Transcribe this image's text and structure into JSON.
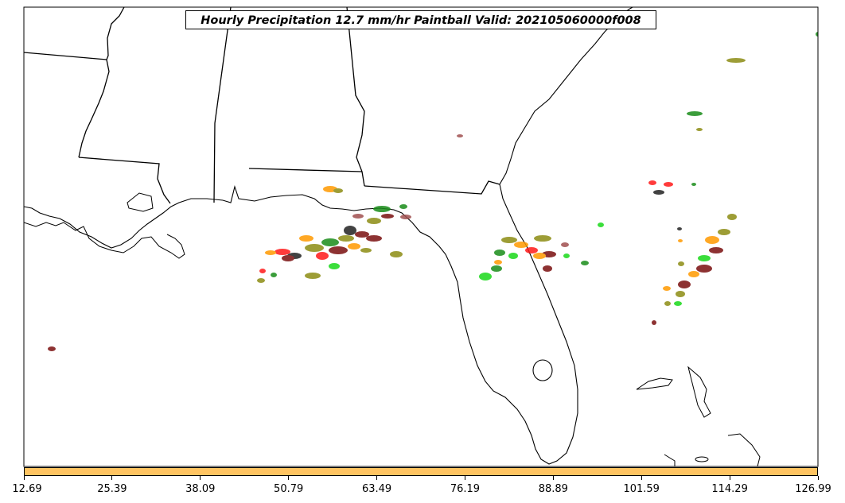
{
  "title": "Hourly Precipitation 12.7 mm/hr Paintball Valid: 202105060000f008",
  "colorbar": {
    "color": "#ffc462",
    "ticks": [
      "12.69",
      "25.39",
      "38.09",
      "50.79",
      "63.49",
      "76.19",
      "88.89",
      "101.59",
      "114.29",
      "126.99"
    ]
  },
  "colors": {
    "red": "#ff1a1a",
    "orange": "#ff9900",
    "olive": "#8c8c14",
    "darkred": "#7a0f0f",
    "green": "#1a8c1a",
    "lime": "#19d919",
    "black": "#222222",
    "brown": "#a05050"
  }
}
